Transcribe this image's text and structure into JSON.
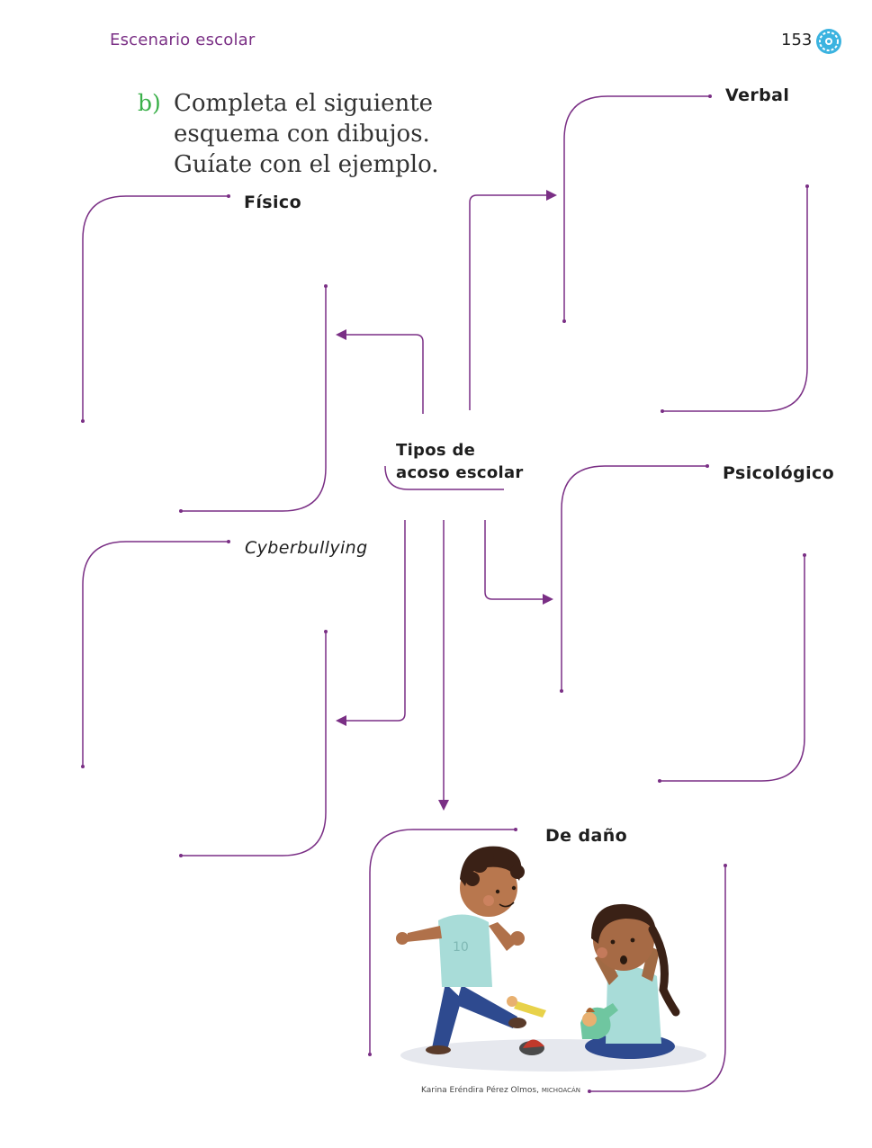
{
  "header": {
    "section_title": "Escenario escolar",
    "page_number": "153"
  },
  "instruction": {
    "letter": "b)",
    "lines": [
      "Completa el siguiente",
      "esquema con dibujos.",
      "Guíate con el ejemplo."
    ]
  },
  "diagram": {
    "center": [
      "Tipos de",
      "acoso escolar"
    ],
    "categories": {
      "fisico": "Físico",
      "verbal": "Verbal",
      "psicologico": "Psicológico",
      "cyberbullying": "Cyberbullying",
      "de_dano": "De daño"
    }
  },
  "illustration": {
    "caption_name": "Karina Eréndira Pérez Olmos,",
    "caption_place": "MICHOACÁN"
  },
  "colors": {
    "accent_purple": "#7a2f85",
    "instruction_letter_green": "#3bb04a",
    "emblem_blue": "#3bb3e0"
  }
}
